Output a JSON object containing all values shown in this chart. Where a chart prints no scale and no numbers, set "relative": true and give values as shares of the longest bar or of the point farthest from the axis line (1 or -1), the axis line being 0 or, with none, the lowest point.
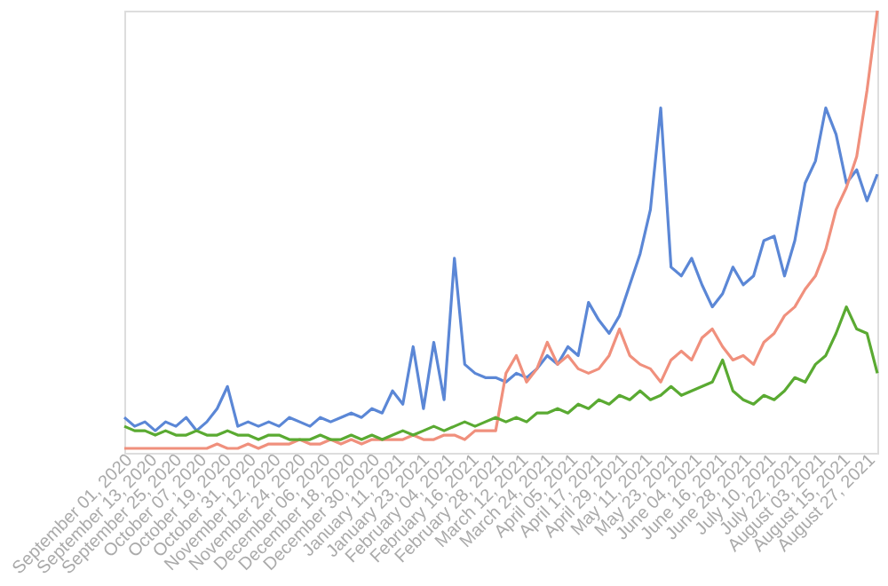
{
  "chart_data": {
    "type": "line",
    "relative": true,
    "x": [
      "2020-08-30",
      "2020-09-04",
      "2020-09-09",
      "2020-09-14",
      "2020-09-19",
      "2020-09-24",
      "2020-09-29",
      "2020-10-04",
      "2020-10-09",
      "2020-10-14",
      "2020-10-19",
      "2020-10-24",
      "2020-10-29",
      "2020-11-03",
      "2020-11-08",
      "2020-11-13",
      "2020-11-18",
      "2020-11-23",
      "2020-11-28",
      "2020-12-03",
      "2020-12-08",
      "2020-12-13",
      "2020-12-18",
      "2020-12-23",
      "2020-12-28",
      "2021-01-02",
      "2021-01-07",
      "2021-01-12",
      "2021-01-17",
      "2021-01-22",
      "2021-01-27",
      "2021-02-01",
      "2021-02-06",
      "2021-02-11",
      "2021-02-16",
      "2021-02-21",
      "2021-02-26",
      "2021-03-03",
      "2021-03-08",
      "2021-03-13",
      "2021-03-18",
      "2021-03-23",
      "2021-03-28",
      "2021-04-02",
      "2021-04-07",
      "2021-04-12",
      "2021-04-17",
      "2021-04-22",
      "2021-04-27",
      "2021-05-02",
      "2021-05-07",
      "2021-05-12",
      "2021-05-17",
      "2021-05-22",
      "2021-05-27",
      "2021-06-01",
      "2021-06-06",
      "2021-06-11",
      "2021-06-16",
      "2021-06-21",
      "2021-06-26",
      "2021-07-01",
      "2021-07-06",
      "2021-07-11",
      "2021-07-16",
      "2021-07-21",
      "2021-07-26",
      "2021-07-31",
      "2021-08-05",
      "2021-08-10",
      "2021-08-15",
      "2021-08-20",
      "2021-08-25",
      "2021-08-30"
    ],
    "xlim": [
      "2020-08-30",
      "2021-08-30"
    ],
    "xticks": [
      {
        "value": "2020-09-01",
        "label": "September 01, 2020"
      },
      {
        "value": "2020-09-13",
        "label": "September 13, 2020"
      },
      {
        "value": "2020-09-25",
        "label": "September 25, 2020"
      },
      {
        "value": "2020-10-07",
        "label": "October 07, 2020"
      },
      {
        "value": "2020-10-19",
        "label": "October 19, 2020"
      },
      {
        "value": "2020-10-31",
        "label": "October 31, 2020"
      },
      {
        "value": "2020-11-12",
        "label": "November 12, 2020"
      },
      {
        "value": "2020-11-24",
        "label": "November 24, 2020"
      },
      {
        "value": "2020-12-06",
        "label": "December 06, 2020"
      },
      {
        "value": "2020-12-18",
        "label": "December 18, 2020"
      },
      {
        "value": "2020-12-30",
        "label": "December 30, 2020"
      },
      {
        "value": "2021-01-11",
        "label": "January 11, 2021"
      },
      {
        "value": "2021-01-23",
        "label": "January 23, 2021"
      },
      {
        "value": "2021-02-04",
        "label": "February 04, 2021"
      },
      {
        "value": "2021-02-16",
        "label": "February 16, 2021"
      },
      {
        "value": "2021-02-28",
        "label": "February 28, 2021"
      },
      {
        "value": "2021-03-12",
        "label": "March 12, 2021"
      },
      {
        "value": "2021-03-24",
        "label": "March 24, 2021"
      },
      {
        "value": "2021-04-05",
        "label": "April 05, 2021"
      },
      {
        "value": "2021-04-17",
        "label": "April 17, 2021"
      },
      {
        "value": "2021-04-29",
        "label": "April 29, 2021"
      },
      {
        "value": "2021-05-11",
        "label": "May 11, 2021"
      },
      {
        "value": "2021-05-23",
        "label": "May 23, 2021"
      },
      {
        "value": "2021-06-04",
        "label": "June 04, 2021"
      },
      {
        "value": "2021-06-16",
        "label": "June 16, 2021"
      },
      {
        "value": "2021-06-28",
        "label": "June 28, 2021"
      },
      {
        "value": "2021-07-10",
        "label": "July 10, 2021"
      },
      {
        "value": "2021-07-22",
        "label": "July 22, 2021"
      },
      {
        "value": "2021-08-03",
        "label": "August 03, 2021"
      },
      {
        "value": "2021-08-15",
        "label": "August 15, 2021"
      },
      {
        "value": "2021-08-27",
        "label": "August 27, 2021"
      }
    ],
    "line_style": "solid",
    "marker": "none",
    "legend": false,
    "grid": false,
    "tick_labels": "x",
    "series": [
      {
        "color": "#5b87d6",
        "values": [
          0.08,
          0.06,
          0.07,
          0.05,
          0.07,
          0.06,
          0.08,
          0.05,
          0.07,
          0.1,
          0.15,
          0.06,
          0.07,
          0.06,
          0.07,
          0.06,
          0.08,
          0.07,
          0.06,
          0.08,
          0.07,
          0.08,
          0.09,
          0.08,
          0.1,
          0.09,
          0.14,
          0.11,
          0.24,
          0.1,
          0.25,
          0.12,
          0.44,
          0.2,
          0.18,
          0.17,
          0.17,
          0.16,
          0.18,
          0.17,
          0.19,
          0.22,
          0.2,
          0.24,
          0.22,
          0.34,
          0.3,
          0.27,
          0.31,
          0.38,
          0.45,
          0.55,
          0.78,
          0.42,
          0.4,
          0.44,
          0.38,
          0.33,
          0.36,
          0.42,
          0.38,
          0.4,
          0.48,
          0.49,
          0.4,
          0.48,
          0.61,
          0.66,
          0.78,
          0.72,
          0.61,
          0.64,
          0.57,
          0.63
        ]
      },
      {
        "color": "#f0907d",
        "values": [
          0.01,
          0.01,
          0.01,
          0.01,
          0.01,
          0.01,
          0.01,
          0.01,
          0.01,
          0.02,
          0.01,
          0.01,
          0.02,
          0.01,
          0.02,
          0.02,
          0.02,
          0.03,
          0.02,
          0.02,
          0.03,
          0.02,
          0.03,
          0.02,
          0.03,
          0.03,
          0.03,
          0.03,
          0.04,
          0.03,
          0.03,
          0.04,
          0.04,
          0.03,
          0.05,
          0.05,
          0.05,
          0.18,
          0.22,
          0.16,
          0.19,
          0.25,
          0.2,
          0.22,
          0.19,
          0.18,
          0.19,
          0.22,
          0.28,
          0.22,
          0.2,
          0.19,
          0.16,
          0.21,
          0.23,
          0.21,
          0.26,
          0.28,
          0.24,
          0.21,
          0.22,
          0.2,
          0.25,
          0.27,
          0.31,
          0.33,
          0.37,
          0.4,
          0.46,
          0.55,
          0.6,
          0.67,
          0.82,
          1.0
        ]
      },
      {
        "color": "#5aaa32",
        "values": [
          0.06,
          0.05,
          0.05,
          0.04,
          0.05,
          0.04,
          0.04,
          0.05,
          0.04,
          0.04,
          0.05,
          0.04,
          0.04,
          0.03,
          0.04,
          0.04,
          0.03,
          0.03,
          0.03,
          0.04,
          0.03,
          0.03,
          0.04,
          0.03,
          0.04,
          0.03,
          0.04,
          0.05,
          0.04,
          0.05,
          0.06,
          0.05,
          0.06,
          0.07,
          0.06,
          0.07,
          0.08,
          0.07,
          0.08,
          0.07,
          0.09,
          0.09,
          0.1,
          0.09,
          0.11,
          0.1,
          0.12,
          0.11,
          0.13,
          0.12,
          0.14,
          0.12,
          0.13,
          0.15,
          0.13,
          0.14,
          0.15,
          0.16,
          0.21,
          0.14,
          0.12,
          0.11,
          0.13,
          0.12,
          0.14,
          0.17,
          0.16,
          0.2,
          0.22,
          0.27,
          0.33,
          0.28,
          0.27,
          0.18
        ]
      }
    ]
  }
}
